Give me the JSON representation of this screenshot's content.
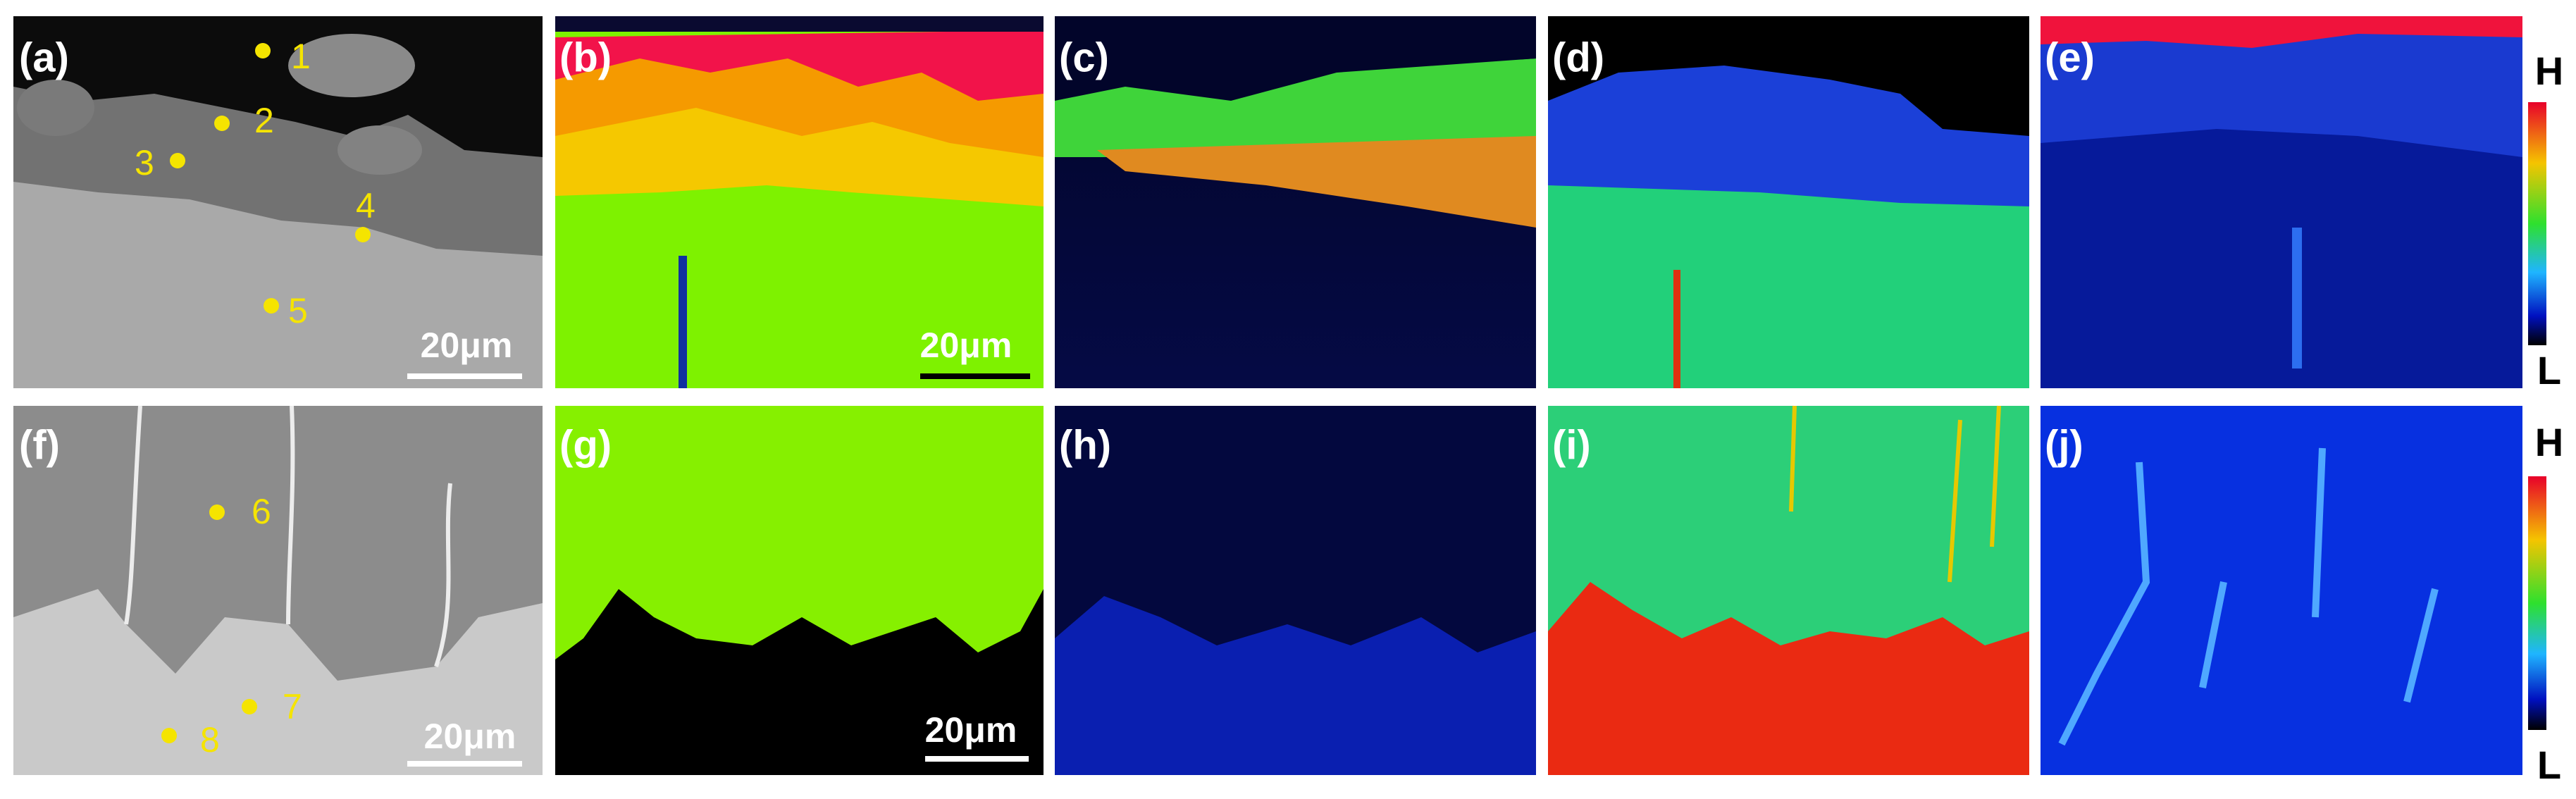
{
  "panels": [
    {
      "label": "(a)",
      "points": [
        "1",
        "2",
        "3",
        "4",
        "5"
      ],
      "scale_bar": "20μm"
    },
    {
      "label": "(b)",
      "scale_bar": "20μm"
    },
    {
      "label": "(c)"
    },
    {
      "label": "(d)"
    },
    {
      "label": "(e)"
    },
    {
      "label": "(f)",
      "points": [
        "6",
        "7",
        "8"
      ],
      "scale_bar": "20μm"
    },
    {
      "label": "(g)",
      "scale_bar": "20μm"
    },
    {
      "label": "(h)"
    },
    {
      "label": "(i)"
    },
    {
      "label": "(j)"
    }
  ],
  "colorbars": [
    {
      "high": "H",
      "low": "L"
    },
    {
      "high": "H",
      "low": "L"
    }
  ]
}
